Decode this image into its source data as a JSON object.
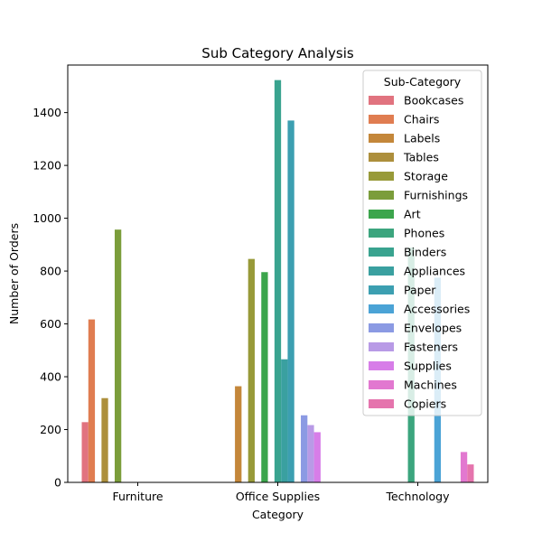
{
  "chart_data": {
    "type": "bar",
    "title": "Sub Category Analysis",
    "xlabel": "Category",
    "ylabel": "Number of Orders",
    "ylim": [
      0,
      1580
    ],
    "yticks": [
      0,
      200,
      400,
      600,
      800,
      1000,
      1200,
      1400
    ],
    "grid": false,
    "legend_position": "top-right",
    "legend_title": "Sub-Category",
    "categories": [
      "Furniture",
      "Office Supplies",
      "Technology"
    ],
    "series": [
      {
        "name": "Bookcases",
        "color": "#e1737f",
        "values": [
          228,
          null,
          null
        ]
      },
      {
        "name": "Chairs",
        "color": "#e07d51",
        "values": [
          617,
          null,
          null
        ]
      },
      {
        "name": "Labels",
        "color": "#c4873a",
        "values": [
          null,
          364,
          null
        ]
      },
      {
        "name": "Tables",
        "color": "#ad8f3c",
        "values": [
          319,
          null,
          null
        ]
      },
      {
        "name": "Storage",
        "color": "#989a39",
        "values": [
          null,
          846,
          null
        ]
      },
      {
        "name": "Furnishings",
        "color": "#7b9d3b",
        "values": [
          957,
          null,
          null
        ]
      },
      {
        "name": "Art",
        "color": "#3ca54c",
        "values": [
          null,
          796,
          null
        ]
      },
      {
        "name": "Phones",
        "color": "#3ca57e",
        "values": [
          null,
          null,
          889
        ]
      },
      {
        "name": "Binders",
        "color": "#39a38f",
        "values": [
          null,
          1523,
          null
        ]
      },
      {
        "name": "Appliances",
        "color": "#3aa0a0",
        "values": [
          null,
          466,
          null
        ]
      },
      {
        "name": "Paper",
        "color": "#3c9fb1",
        "values": [
          null,
          1370,
          null
        ]
      },
      {
        "name": "Accessories",
        "color": "#4ba3d6",
        "values": [
          null,
          null,
          775
        ]
      },
      {
        "name": "Envelopes",
        "color": "#8b9ae3",
        "values": [
          null,
          254,
          null
        ]
      },
      {
        "name": "Fasteners",
        "color": "#b89ae6",
        "values": [
          null,
          217,
          null
        ]
      },
      {
        "name": "Supplies",
        "color": "#d77de8",
        "values": [
          null,
          190,
          null
        ]
      },
      {
        "name": "Machines",
        "color": "#e278d0",
        "values": [
          null,
          null,
          115
        ]
      },
      {
        "name": "Copiers",
        "color": "#e574ad",
        "values": [
          null,
          null,
          68
        ]
      }
    ]
  }
}
